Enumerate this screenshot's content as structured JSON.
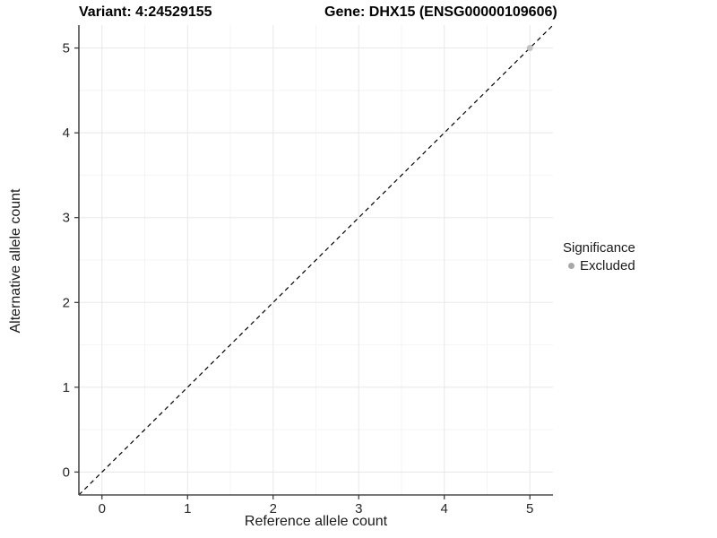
{
  "titles": {
    "variant": "Variant: 4:24529155",
    "gene": "Gene: DHX15 (ENSG00000109606)"
  },
  "chart_data": {
    "type": "scatter",
    "title_left": "Variant: 4:24529155",
    "title_right": "Gene: DHX15 (ENSG00000109606)",
    "xlabel": "Reference allele count",
    "ylabel": "Alternative allele count",
    "xlim": [
      -0.27,
      5.27
    ],
    "ylim": [
      -0.27,
      5.27
    ],
    "x_ticks": [
      0,
      1,
      2,
      3,
      4,
      5
    ],
    "y_ticks": [
      0,
      1,
      2,
      3,
      4,
      5
    ],
    "x_minor_ticks": [
      0.5,
      1.5,
      2.5,
      3.5,
      4.5
    ],
    "y_minor_ticks": [
      0.5,
      1.5,
      2.5,
      3.5,
      4.5
    ],
    "grid": true,
    "legend_position": "right",
    "series": [
      {
        "name": "Excluded",
        "color": "#c3c3c3",
        "points": [
          {
            "x": 5,
            "y": 5
          }
        ]
      }
    ],
    "reference_line": {
      "kind": "identity",
      "slope": 1,
      "intercept": 0,
      "style": "dashed",
      "color": "#000000"
    }
  },
  "legend": {
    "title": "Significance",
    "entries": [
      {
        "label": "Excluded",
        "color": "#a8a8a8"
      }
    ]
  },
  "colors": {
    "background": "#ffffff",
    "grid_major": "#e8e8e8",
    "grid_minor": "#f4f4f4",
    "axis_line": "#4a4a4a",
    "tick_mark": "#333333",
    "tick_label": "#262626",
    "dashed_line": "#000000",
    "point": "#c3c3c3",
    "legend_dot": "#a8a8a8"
  }
}
